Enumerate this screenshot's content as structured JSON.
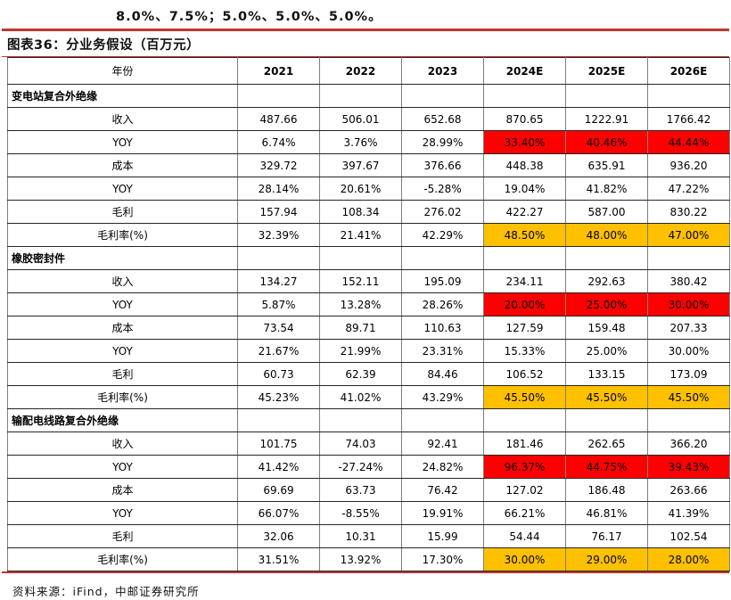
{
  "page": {
    "intro_text": "8.0%、7.5%；5.0%、5.0%、5.0%。",
    "figure_title": "图表36：分业务假设（百万元）",
    "source_text": "资料来源：iFind，中邮证券研究所"
  },
  "colors": {
    "rule_red": "#c0362f",
    "highlight_red": "#ff0000",
    "highlight_orange": "#ffc000"
  },
  "table": {
    "header": [
      "年份",
      "2021",
      "2022",
      "2023",
      "2024E",
      "2025E",
      "2026E"
    ],
    "sections": [
      {
        "name": "变电站复合外绝缘",
        "rows": [
          {
            "label": "收入",
            "values": [
              "487.66",
              "506.01",
              "652.68",
              "870.65",
              "1222.91",
              "1766.42"
            ],
            "highlight": null
          },
          {
            "label": "YOY",
            "values": [
              "6.74%",
              "3.76%",
              "28.99%",
              "33.40%",
              "40.46%",
              "44.44%"
            ],
            "highlight": "red"
          },
          {
            "label": "成本",
            "values": [
              "329.72",
              "397.67",
              "376.66",
              "448.38",
              "635.91",
              "936.20"
            ],
            "highlight": null
          },
          {
            "label": "YOY",
            "values": [
              "28.14%",
              "20.61%",
              "-5.28%",
              "19.04%",
              "41.82%",
              "47.22%"
            ],
            "highlight": null
          },
          {
            "label": "毛利",
            "values": [
              "157.94",
              "108.34",
              "276.02",
              "422.27",
              "587.00",
              "830.22"
            ],
            "highlight": null
          },
          {
            "label": "毛利率(%)",
            "values": [
              "32.39%",
              "21.41%",
              "42.29%",
              "48.50%",
              "48.00%",
              "47.00%"
            ],
            "highlight": "orange"
          }
        ]
      },
      {
        "name": "橡胶密封件",
        "rows": [
          {
            "label": "收入",
            "values": [
              "134.27",
              "152.11",
              "195.09",
              "234.11",
              "292.63",
              "380.42"
            ],
            "highlight": null
          },
          {
            "label": "YOY",
            "values": [
              "5.87%",
              "13.28%",
              "28.26%",
              "20.00%",
              "25.00%",
              "30.00%"
            ],
            "highlight": "red"
          },
          {
            "label": "成本",
            "values": [
              "73.54",
              "89.71",
              "110.63",
              "127.59",
              "159.48",
              "207.33"
            ],
            "highlight": null
          },
          {
            "label": "YOY",
            "values": [
              "21.67%",
              "21.99%",
              "23.31%",
              "15.33%",
              "25.00%",
              "30.00%"
            ],
            "highlight": null
          },
          {
            "label": "毛利",
            "values": [
              "60.73",
              "62.39",
              "84.46",
              "106.52",
              "133.15",
              "173.09"
            ],
            "highlight": null
          },
          {
            "label": "毛利率(%)",
            "values": [
              "45.23%",
              "41.02%",
              "43.29%",
              "45.50%",
              "45.50%",
              "45.50%"
            ],
            "highlight": "orange"
          }
        ]
      },
      {
        "name": "输配电线路复合外绝缘",
        "rows": [
          {
            "label": "收入",
            "values": [
              "101.75",
              "74.03",
              "92.41",
              "181.46",
              "262.65",
              "366.20"
            ],
            "highlight": null
          },
          {
            "label": "YOY",
            "values": [
              "41.42%",
              "-27.24%",
              "24.82%",
              "96.37%",
              "44.75%",
              "39.43%"
            ],
            "highlight": "red"
          },
          {
            "label": "成本",
            "values": [
              "69.69",
              "63.73",
              "76.42",
              "127.02",
              "186.48",
              "263.66"
            ],
            "highlight": null
          },
          {
            "label": "YOY",
            "values": [
              "66.07%",
              "-8.55%",
              "19.91%",
              "66.21%",
              "46.81%",
              "41.39%"
            ],
            "highlight": null
          },
          {
            "label": "毛利",
            "values": [
              "32.06",
              "10.31",
              "15.99",
              "54.44",
              "76.17",
              "102.54"
            ],
            "highlight": null
          },
          {
            "label": "毛利率(%)",
            "values": [
              "31.51%",
              "13.92%",
              "17.30%",
              "30.00%",
              "29.00%",
              "28.00%"
            ],
            "highlight": "orange"
          }
        ]
      }
    ]
  }
}
